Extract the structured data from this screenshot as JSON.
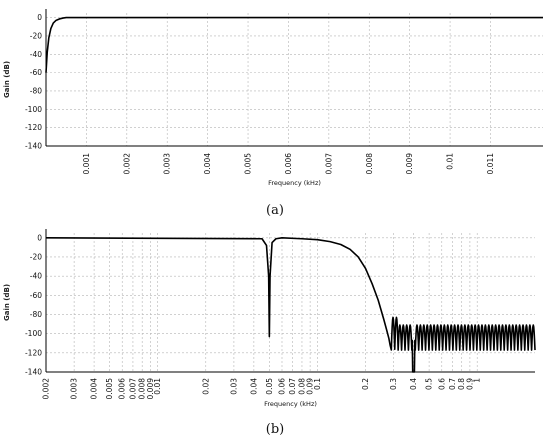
{
  "chart_data": [
    {
      "type": "line",
      "caption": "(a)",
      "ylabel": "Gain (dB)",
      "xlabel": "Frequency (kHz)",
      "x_scale": "linear",
      "xlim": [
        0,
        0.0123
      ],
      "ylim": [
        -140,
        5
      ],
      "yticks": [
        0,
        -20,
        -40,
        -60,
        -80,
        -100,
        -120,
        -140
      ],
      "xticks": [
        "0.001",
        "0.002",
        "0.003",
        "0.004",
        "0.005",
        "0.006",
        "0.007",
        "0.008",
        "0.009",
        "0.01",
        "0.011"
      ],
      "grid": true,
      "series": [
        {
          "x": [
            0.0,
            3e-05,
            7e-05,
            0.00012,
            0.00018,
            0.00025,
            0.00033,
            0.00042,
            0.0005,
            0.0006,
            0.0123
          ],
          "y": [
            -60,
            -38,
            -22,
            -12,
            -6,
            -3,
            -1.5,
            -0.5,
            0,
            0,
            0
          ]
        }
      ]
    },
    {
      "type": "line",
      "caption": "(b)",
      "ylabel": "Gain (dB)",
      "xlabel": "Frequency (kHz)",
      "x_scale": "log",
      "xlim": [
        0.002,
        2.3
      ],
      "ylim": [
        -140,
        5
      ],
      "yticks": [
        0,
        -20,
        -40,
        -60,
        -80,
        -100,
        -120,
        -140
      ],
      "xticks": [
        "0.002",
        "0.003",
        "0.004",
        "0.005",
        "0.006",
        "0.007",
        "0.008",
        "0.009",
        "0.01",
        "0.02",
        "0.03",
        "0.04",
        "0.05",
        "0.06",
        "0.07",
        "0.08",
        "0.09",
        "0.1",
        "0.2",
        "0.3",
        "0.4",
        "0.5",
        "0.6",
        "0.7",
        "0.8",
        "0.9",
        "1"
      ],
      "grid": true,
      "notch_frequency": 0.05,
      "notch_depth": -103,
      "stopband_edge": 0.29,
      "series": [
        {
          "x": [
            0.002,
            0.045,
            0.048,
            0.0495,
            0.05,
            0.0505,
            0.052,
            0.055,
            0.06,
            0.08,
            0.1,
            0.12,
            0.14,
            0.16,
            0.18,
            0.2,
            0.22,
            0.24,
            0.26,
            0.27,
            0.28,
            0.285,
            0.29
          ],
          "y": [
            0,
            -1,
            -8,
            -40,
            -103,
            -40,
            -5,
            -1,
            0,
            -1,
            -2,
            -4,
            -7,
            -12,
            -20,
            -32,
            -48,
            -65,
            -85,
            -95,
            -105,
            -112,
            -117
          ]
        }
      ],
      "sidelobes": {
        "x_start": 0.29,
        "x_end": 2.3,
        "lobes": 42,
        "peak_first": -83,
        "peak_rest": -91,
        "null_min": -120,
        "deep_null_frequency": 0.4,
        "deep_null_value": -140
      }
    }
  ]
}
